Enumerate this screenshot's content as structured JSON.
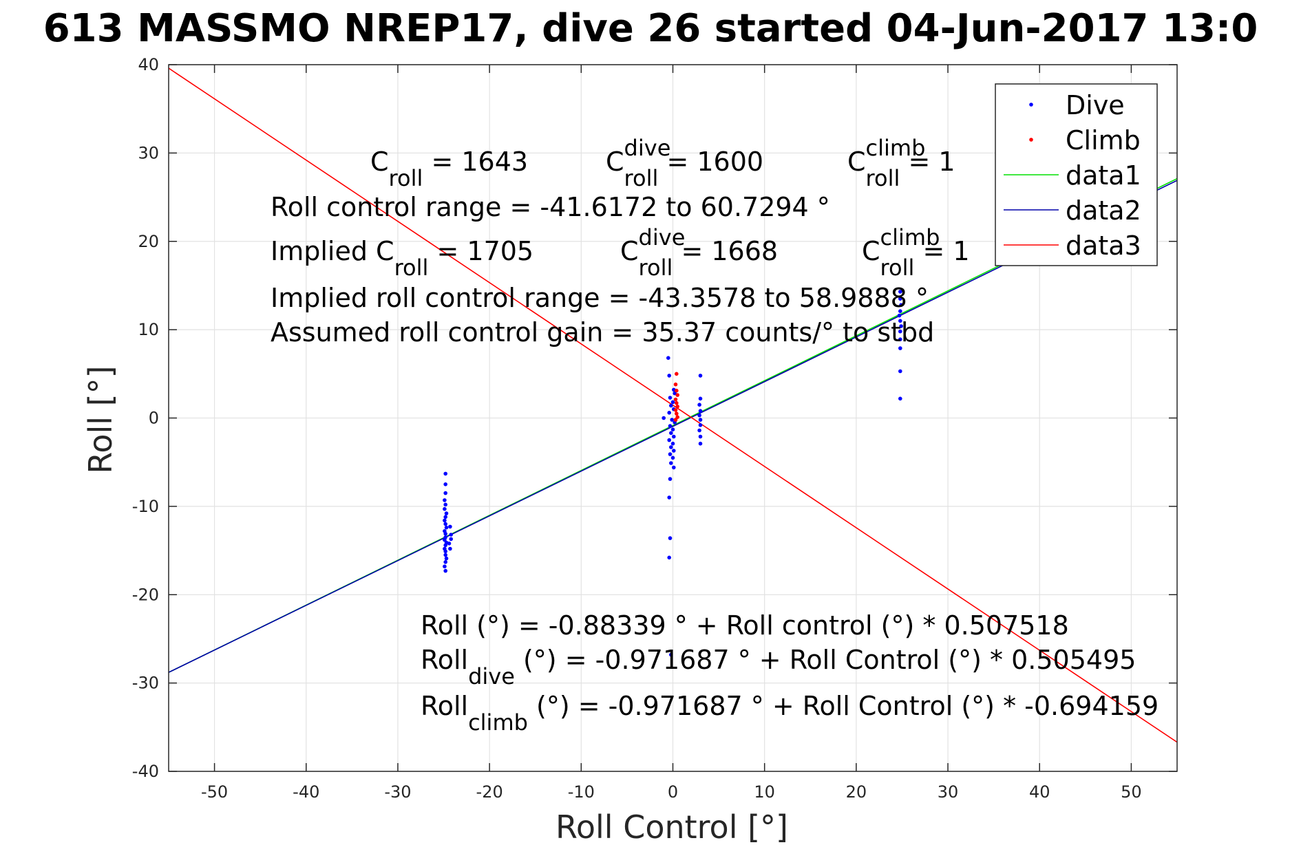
{
  "chart_data": {
    "type": "scatter",
    "title": "613 MASSMO NREP17, dive 26 started 04-Jun-2017 13:0",
    "xlabel": "Roll Control [°]",
    "ylabel": "Roll [°]",
    "xlim": [
      -55,
      55
    ],
    "ylim": [
      -40,
      40
    ],
    "xticks": [
      -50,
      -40,
      -30,
      -20,
      -10,
      0,
      10,
      20,
      30,
      40,
      50
    ],
    "yticks": [
      -40,
      -30,
      -20,
      -10,
      0,
      10,
      20,
      30,
      40
    ],
    "grid": true,
    "legend_position": "top-right",
    "colors": {
      "dive": "#0000ff",
      "climb": "#ff0000",
      "data1": "#00e000",
      "data2": "#0000aa",
      "data3": "#ff0000"
    },
    "legend": [
      "Dive",
      "Climb",
      "data1",
      "data2",
      "data3"
    ],
    "series": [
      {
        "name": "Dive",
        "kind": "points",
        "points": [
          [
            -24.8,
            -6.3
          ],
          [
            -24.8,
            -7.5
          ],
          [
            -24.8,
            -8.5
          ],
          [
            -24.9,
            -9.3
          ],
          [
            -24.8,
            -9.8
          ],
          [
            -24.9,
            -10.3
          ],
          [
            -24.7,
            -10.8
          ],
          [
            -24.8,
            -11.2
          ],
          [
            -24.9,
            -11.6
          ],
          [
            -24.8,
            -12.0
          ],
          [
            -24.7,
            -12.4
          ],
          [
            -24.9,
            -12.8
          ],
          [
            -24.8,
            -13.1
          ],
          [
            -24.8,
            -13.5
          ],
          [
            -24.9,
            -13.8
          ],
          [
            -24.7,
            -14.1
          ],
          [
            -24.8,
            -14.4
          ],
          [
            -24.9,
            -14.8
          ],
          [
            -24.8,
            -15.1
          ],
          [
            -24.8,
            -15.5
          ],
          [
            -24.7,
            -15.9
          ],
          [
            -24.8,
            -16.3
          ],
          [
            -24.9,
            -16.8
          ],
          [
            -24.8,
            -17.3
          ],
          [
            -24.3,
            -12.3
          ],
          [
            -24.2,
            -13.2
          ],
          [
            -24.4,
            -14.2
          ],
          [
            -24.3,
            -14.8
          ],
          [
            -24.2,
            -13.7
          ],
          [
            -0.5,
            6.8
          ],
          [
            -0.4,
            4.8
          ],
          [
            0.1,
            3.2
          ],
          [
            0.2,
            2.8
          ],
          [
            -0.3,
            2.3
          ],
          [
            0.0,
            1.8
          ],
          [
            -0.2,
            1.4
          ],
          [
            0.1,
            1.0
          ],
          [
            -0.4,
            0.6
          ],
          [
            -1.0,
            0.0
          ],
          [
            -0.1,
            -0.2
          ],
          [
            0.2,
            -0.5
          ],
          [
            -0.3,
            -0.9
          ],
          [
            0.0,
            -1.3
          ],
          [
            -0.2,
            -1.7
          ],
          [
            0.1,
            -2.1
          ],
          [
            -0.4,
            -2.5
          ],
          [
            0.0,
            -2.9
          ],
          [
            -0.2,
            -3.3
          ],
          [
            0.1,
            -3.7
          ],
          [
            -0.3,
            -4.1
          ],
          [
            0.0,
            -4.5
          ],
          [
            -0.2,
            -5.1
          ],
          [
            0.1,
            -5.6
          ],
          [
            -0.3,
            -6.9
          ],
          [
            -0.4,
            -9.0
          ],
          [
            -0.3,
            -13.6
          ],
          [
            -0.4,
            -15.8
          ],
          [
            -0.2,
            -26.8
          ],
          [
            3.0,
            4.8
          ],
          [
            3.0,
            2.2
          ],
          [
            2.9,
            1.5
          ],
          [
            3.0,
            0.8
          ],
          [
            2.9,
            0.3
          ],
          [
            3.0,
            -0.2
          ],
          [
            3.0,
            -0.8
          ],
          [
            2.9,
            -1.4
          ],
          [
            3.0,
            -2.1
          ],
          [
            3.0,
            -2.9
          ],
          [
            24.8,
            14.3
          ],
          [
            24.8,
            13.5
          ],
          [
            24.9,
            12.8
          ],
          [
            24.8,
            12.1
          ],
          [
            24.7,
            11.6
          ],
          [
            24.8,
            11.0
          ],
          [
            24.9,
            10.4
          ],
          [
            24.8,
            9.8
          ],
          [
            24.8,
            8.9
          ],
          [
            24.8,
            7.9
          ],
          [
            24.8,
            5.3
          ],
          [
            24.8,
            2.2
          ]
        ]
      },
      {
        "name": "Climb",
        "kind": "points",
        "points": [
          [
            0.4,
            5.0
          ],
          [
            0.3,
            3.8
          ],
          [
            0.4,
            3.1
          ],
          [
            0.5,
            2.6
          ],
          [
            0.3,
            2.1
          ],
          [
            0.4,
            1.7
          ],
          [
            0.5,
            1.3
          ],
          [
            0.3,
            0.9
          ],
          [
            0.4,
            0.5
          ],
          [
            0.5,
            0.1
          ],
          [
            0.3,
            -0.2
          ]
        ]
      },
      {
        "name": "data1",
        "kind": "line",
        "points": [
          [
            -55,
            -28.8
          ],
          [
            55,
            27.1
          ]
        ]
      },
      {
        "name": "data2",
        "kind": "line",
        "points": [
          [
            -55,
            -28.8
          ],
          [
            55,
            26.9
          ]
        ]
      },
      {
        "name": "data3",
        "kind": "line",
        "points": [
          [
            -55,
            39.6
          ],
          [
            55,
            -36.7
          ]
        ]
      }
    ],
    "annotations": [
      {
        "parts": [
          [
            "C",
            ""
          ],
          [
            "roll",
            "sub"
          ],
          [
            " = 1643",
            ""
          ]
        ]
      },
      {
        "parts": [
          [
            "C",
            ""
          ],
          [
            "dive",
            "sup"
          ],
          [
            "roll",
            "sub"
          ],
          [
            " = 1600",
            ""
          ]
        ]
      },
      {
        "parts": [
          [
            "C",
            ""
          ],
          [
            "climb",
            "sup"
          ],
          [
            "roll",
            "sub"
          ],
          [
            " = 1",
            ""
          ]
        ]
      },
      {
        "parts": [
          [
            "Roll control range = -41.6172 to 60.7294 °",
            ""
          ]
        ]
      },
      {
        "parts": [
          [
            "Implied C",
            ""
          ],
          [
            "roll",
            "sub"
          ],
          [
            " = 1705",
            ""
          ]
        ]
      },
      {
        "parts": [
          [
            "C",
            ""
          ],
          [
            "dive",
            "sup"
          ],
          [
            "roll",
            "sub"
          ],
          [
            " = 1668",
            ""
          ]
        ]
      },
      {
        "parts": [
          [
            "C",
            ""
          ],
          [
            "climb",
            "sup"
          ],
          [
            "roll",
            "sub"
          ],
          [
            " = 1",
            ""
          ]
        ]
      },
      {
        "parts": [
          [
            "Implied roll control range = -43.3578 to 58.9888 °",
            ""
          ]
        ]
      },
      {
        "parts": [
          [
            "Assumed roll control gain = 35.37 counts/° to stbd",
            ""
          ]
        ]
      },
      {
        "parts": [
          [
            "Roll (°) = -0.88339 ° + Roll control (°) * 0.507518",
            ""
          ]
        ]
      },
      {
        "parts": [
          [
            "Roll",
            ""
          ],
          [
            "dive",
            "sub"
          ],
          [
            " (°) = -0.971687 ° + Roll Control (°) * 0.505495",
            ""
          ]
        ]
      },
      {
        "parts": [
          [
            "Roll",
            ""
          ],
          [
            "climb",
            "sub"
          ],
          [
            " (°) = -0.971687 ° + Roll Control (°) * -0.694159",
            ""
          ]
        ]
      }
    ]
  }
}
